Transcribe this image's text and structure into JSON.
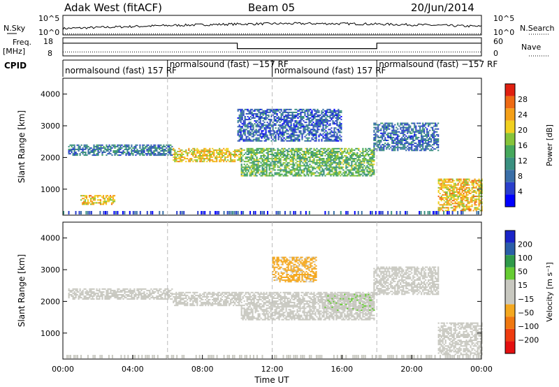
{
  "header": {
    "station": "Adak West (fitACF)",
    "beam": "Beam 05",
    "date": "20/Jun/2014"
  },
  "panel_labels": {
    "nsky": "N.Sky",
    "nsearch": "N.Search",
    "freq": "Freq.",
    "freq_unit": "[MHz]",
    "nave": "Nave",
    "cpid": "CPID"
  },
  "noise_axis": {
    "left_top": "10^5",
    "left_bottom": "10^0",
    "right_top": "10^5",
    "right_bottom": "10^0"
  },
  "freq_axis": {
    "left_ticks": [
      "18",
      "8"
    ],
    "right_ticks": [
      "60",
      "0"
    ]
  },
  "cpid_segments": [
    {
      "label": "normalsound (fast) 157 RF",
      "start_hr": 0,
      "end_hr": 6
    },
    {
      "label": "normalsound (fast) −157 RF",
      "start_hr": 6,
      "end_hr": 12
    },
    {
      "label": "normalsound (fast) 157 RF",
      "start_hr": 12,
      "end_hr": 18
    },
    {
      "label": "normalsound (fast) −157 RF",
      "start_hr": 18,
      "end_hr": 24
    }
  ],
  "chart_data": [
    {
      "type": "line",
      "panel": "noise",
      "series": [
        {
          "name": "N.Sky",
          "style": "solid"
        },
        {
          "name": "N.Search",
          "style": "dotted"
        }
      ],
      "yscale": "log",
      "ylim": [
        "10^0",
        "10^5"
      ]
    },
    {
      "type": "line",
      "panel": "frequency-nave",
      "series": [
        {
          "name": "Freq.",
          "unit": "MHz",
          "style": "solid",
          "steps": [
            {
              "start_hr": 0,
              "end_hr": 10,
              "value": 15
            },
            {
              "start_hr": 10,
              "end_hr": 18,
              "value": 12
            },
            {
              "start_hr": 18,
              "end_hr": 24,
              "value": 15
            }
          ]
        },
        {
          "name": "Nave",
          "style": "dotted",
          "value": 13
        }
      ],
      "ylim_left": [
        8,
        18
      ],
      "ylim_right": [
        0,
        60
      ]
    },
    {
      "type": "heatmap",
      "panel": "power",
      "ylabel": "Slant Range [km]",
      "yticks": [
        1000,
        2000,
        3000,
        4000
      ],
      "ylim": [
        180,
        4500
      ],
      "xlim_hr": [
        0,
        24
      ],
      "colorbar": {
        "label": "Power [dB]",
        "ticks": [
          "28",
          "24",
          "20",
          "16",
          "12",
          "8",
          "4"
        ],
        "range": [
          0,
          32
        ],
        "colors": [
          "#0000ff",
          "#2a3fcc",
          "#3a6fa8",
          "#3a9080",
          "#46a85c",
          "#86c43a",
          "#f0d020",
          "#f4a018",
          "#ee6a14",
          "#e02010"
        ]
      },
      "echo_bands": [
        {
          "t0": 0.3,
          "t1": 6.3,
          "r0": 2050,
          "r1": 2400,
          "power": 9
        },
        {
          "t0": 6.3,
          "t1": 10.2,
          "r0": 1850,
          "r1": 2300,
          "power": 21
        },
        {
          "t0": 10.2,
          "t1": 17.8,
          "r0": 1400,
          "r1": 2300,
          "power": 15
        },
        {
          "t0": 17.8,
          "t1": 21.5,
          "r0": 2200,
          "r1": 3100,
          "power": 8
        },
        {
          "t0": 21.5,
          "t1": 24.0,
          "r0": 300,
          "r1": 1300,
          "power": 22
        },
        {
          "t0": 1.0,
          "t1": 3.0,
          "r0": 500,
          "r1": 800,
          "power": 22
        },
        {
          "t0": 10.0,
          "t1": 16.0,
          "r0": 2500,
          "r1": 3500,
          "power": 7
        }
      ]
    },
    {
      "type": "heatmap",
      "panel": "velocity",
      "xlabel": "Time UT",
      "ylabel": "Slant Range [km]",
      "xticks": [
        "00:00",
        "04:00",
        "08:00",
        "12:00",
        "16:00",
        "20:00",
        "00:00"
      ],
      "yticks": [
        1000,
        2000,
        3000,
        4000
      ],
      "ylim": [
        180,
        4500
      ],
      "xlim_hr": [
        0,
        24
      ],
      "colorbar": {
        "label": "Velocity [m s⁻¹]",
        "ticks": [
          "200",
          "100",
          "50",
          "15",
          "−15",
          "−50",
          "−100",
          "−200"
        ],
        "range": [
          -250,
          250
        ],
        "colors": [
          "#e41010",
          "#ee3c10",
          "#f07810",
          "#f4a820",
          "#c8c8c0",
          "#c8c8c0",
          "#66cc33",
          "#2f9a4a",
          "#2a5ea8",
          "#1a24c8"
        ]
      },
      "echo_bands": [
        {
          "t0": 0.3,
          "t1": 6.3,
          "r0": 2050,
          "r1": 2400,
          "velocity": 0
        },
        {
          "t0": 6.3,
          "t1": 10.2,
          "r0": 1850,
          "r1": 2300,
          "velocity": 0
        },
        {
          "t0": 10.2,
          "t1": 17.8,
          "r0": 1400,
          "r1": 2300,
          "velocity": 0
        },
        {
          "t0": 12.0,
          "t1": 14.5,
          "r0": 2600,
          "r1": 3400,
          "velocity": -60
        },
        {
          "t0": 15.0,
          "t1": 17.8,
          "r0": 1700,
          "r1": 2200,
          "velocity": 40
        },
        {
          "t0": 17.8,
          "t1": 21.5,
          "r0": 2200,
          "r1": 3100,
          "velocity": 0
        },
        {
          "t0": 21.5,
          "t1": 24.0,
          "r0": 300,
          "r1": 1300,
          "velocity": 0
        }
      ]
    }
  ]
}
